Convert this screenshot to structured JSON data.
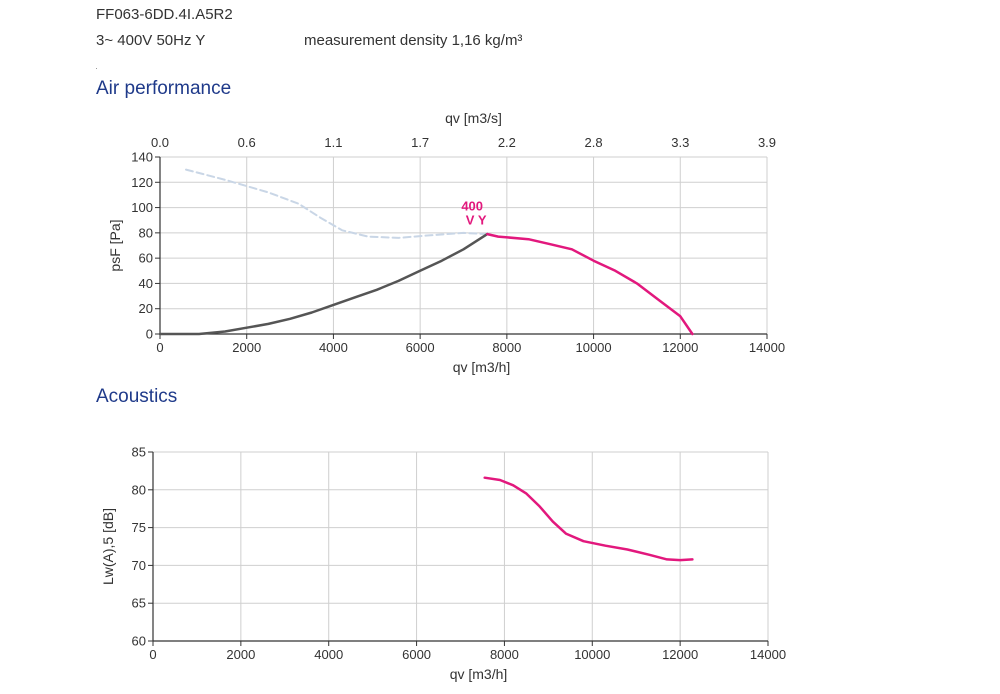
{
  "header": {
    "model": "FF063-6DD.4I.A5R2",
    "supply": "3~ 400V 50Hz Y",
    "density": "measurement density 1,16 kg/m³"
  },
  "sections": {
    "air": "Air performance",
    "acoustics": "Acoustics"
  },
  "colors": {
    "accent": "#e2187d",
    "grey_curve": "#555555",
    "dashed_curve": "#c9d6e6",
    "grid": "#cfcfcf",
    "section_title": "#1f3a8a"
  },
  "chart_data": [
    {
      "type": "line",
      "xlabel": "qv [m3/h]",
      "x2label": "qv [m3/s]",
      "ylabel": "psF [Pa]",
      "xlim": [
        0,
        14000
      ],
      "ylim": [
        0,
        140
      ],
      "x_ticks": [
        0,
        2000,
        4000,
        6000,
        8000,
        10000,
        12000,
        14000
      ],
      "y_ticks": [
        0,
        20,
        40,
        60,
        80,
        100,
        120,
        140
      ],
      "x2_ticks": [
        "0.0",
        "0.6",
        "1.1",
        "1.7",
        "2.2",
        "2.8",
        "3.3",
        "3.9"
      ],
      "grid": true,
      "annotation": {
        "line1": "400",
        "line2": "V Y",
        "x": 7200,
        "y": 85
      },
      "series": [
        {
          "values": [
            [
              7550,
              79
            ],
            [
              7800,
              77
            ],
            [
              8500,
              75
            ],
            [
              9000,
              71
            ],
            [
              9500,
              67
            ],
            [
              10000,
              58
            ],
            [
              10500,
              50
            ],
            [
              11000,
              40
            ],
            [
              11500,
              27
            ],
            [
              12000,
              14
            ],
            [
              12280,
              0
            ]
          ]
        },
        {
          "values": [
            [
              0,
              0
            ],
            [
              900,
              0
            ],
            [
              1500,
              2
            ],
            [
              2000,
              5
            ],
            [
              2500,
              8
            ],
            [
              3000,
              12
            ],
            [
              3500,
              17
            ],
            [
              4000,
              23
            ],
            [
              4500,
              29
            ],
            [
              5000,
              35
            ],
            [
              5500,
              42
            ],
            [
              6000,
              50
            ],
            [
              6500,
              58
            ],
            [
              7000,
              67
            ],
            [
              7550,
              79
            ]
          ]
        },
        {
          "values": [
            [
              600,
              130
            ],
            [
              1500,
              122
            ],
            [
              2500,
              112
            ],
            [
              3200,
              103
            ],
            [
              3700,
              92
            ],
            [
              4200,
              82
            ],
            [
              4800,
              77
            ],
            [
              5500,
              76
            ],
            [
              6200,
              78
            ],
            [
              7000,
              80
            ],
            [
              7550,
              79
            ]
          ]
        }
      ]
    },
    {
      "type": "line",
      "xlabel": "qv [m3/h]",
      "ylabel": "Lw(A),5 [dB]",
      "xlim": [
        0,
        14000
      ],
      "ylim": [
        60,
        85
      ],
      "x_ticks": [
        0,
        2000,
        4000,
        6000,
        8000,
        10000,
        12000,
        14000
      ],
      "y_ticks": [
        60,
        65,
        70,
        75,
        80,
        85
      ],
      "grid": true,
      "series": [
        {
          "values": [
            [
              7550,
              81.6
            ],
            [
              7900,
              81.3
            ],
            [
              8200,
              80.6
            ],
            [
              8500,
              79.5
            ],
            [
              8800,
              77.8
            ],
            [
              9100,
              75.8
            ],
            [
              9400,
              74.2
            ],
            [
              9800,
              73.2
            ],
            [
              10300,
              72.6
            ],
            [
              10800,
              72.1
            ],
            [
              11300,
              71.4
            ],
            [
              11700,
              70.8
            ],
            [
              12000,
              70.7
            ],
            [
              12280,
              70.8
            ]
          ]
        }
      ]
    }
  ]
}
